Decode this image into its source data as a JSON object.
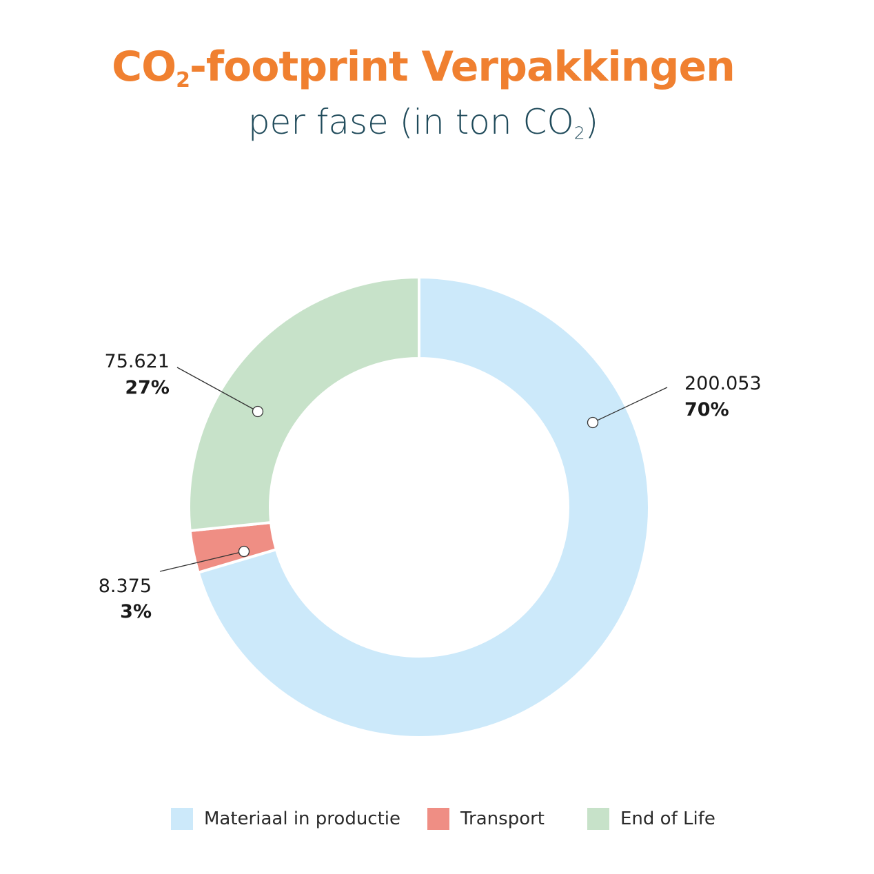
{
  "title": {
    "main_pre": "CO",
    "main_sub": "2",
    "main_post": "-footprint Verpakkingen",
    "sub_pre": "per fase (in ton CO",
    "sub_sub": "2",
    "sub_post": ")"
  },
  "colors": {
    "title": "#f08030",
    "subtitle": "#1f4a5a",
    "materiaal": "#cce9fa",
    "transport": "#ef8e84",
    "endoflife": "#c7e2c9"
  },
  "chart_data": {
    "type": "pie",
    "title": "CO2-footprint Verpakkingen",
    "subtitle": "per fase (in ton CO2)",
    "legend_position": "bottom",
    "slices": [
      {
        "label": "Materiaal in productie",
        "value": 200053,
        "value_label": "200.053",
        "percent_label": "70%",
        "color": "#cce9fa"
      },
      {
        "label": "Transport",
        "value": 8375,
        "value_label": "8.375",
        "percent_label": "3%",
        "color": "#ef8e84"
      },
      {
        "label": "End of Life",
        "value": 75621,
        "value_label": "75.621",
        "percent_label": "27%",
        "color": "#c7e2c9"
      }
    ]
  }
}
